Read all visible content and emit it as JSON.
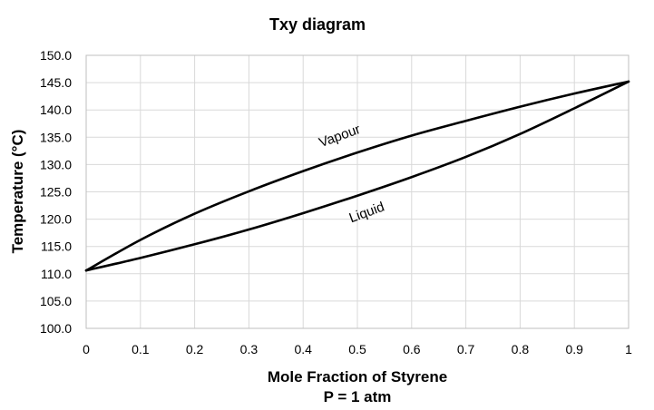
{
  "chart_data": {
    "type": "line",
    "title": "Txy diagram",
    "xlabel": "Mole Fraction of Styrene",
    "xlabel_sub": "P = 1 atm",
    "ylabel": "Temperature (°C)",
    "xlim": [
      0,
      1
    ],
    "ylim": [
      100,
      150
    ],
    "grid": true,
    "x_ticks": [
      "0",
      "0.1",
      "0.2",
      "0.3",
      "0.4",
      "0.5",
      "0.6",
      "0.7",
      "0.8",
      "0.9",
      "1"
    ],
    "y_ticks": [
      "100.0",
      "105.0",
      "110.0",
      "115.0",
      "120.0",
      "125.0",
      "130.0",
      "135.0",
      "140.0",
      "145.0",
      "150.0"
    ],
    "series": [
      {
        "name": "Vapour",
        "x": [
          0,
          0.1,
          0.2,
          0.3,
          0.4,
          0.5,
          0.6,
          0.7,
          0.8,
          0.9,
          1
        ],
        "y": [
          110.6,
          116.2,
          121.0,
          125.1,
          128.8,
          132.2,
          135.3,
          138.0,
          140.6,
          143.0,
          145.2
        ]
      },
      {
        "name": "Liquid",
        "x": [
          0,
          0.1,
          0.2,
          0.3,
          0.4,
          0.5,
          0.6,
          0.7,
          0.8,
          0.9,
          1
        ],
        "y": [
          110.6,
          112.9,
          115.4,
          118.1,
          121.1,
          124.3,
          127.7,
          131.4,
          135.6,
          140.3,
          145.2
        ]
      }
    ],
    "annotations": [
      {
        "text": "Vapour",
        "x": 0.47,
        "y": 134.5
      },
      {
        "text": "Liquid",
        "x": 0.52,
        "y": 120.5
      }
    ]
  }
}
